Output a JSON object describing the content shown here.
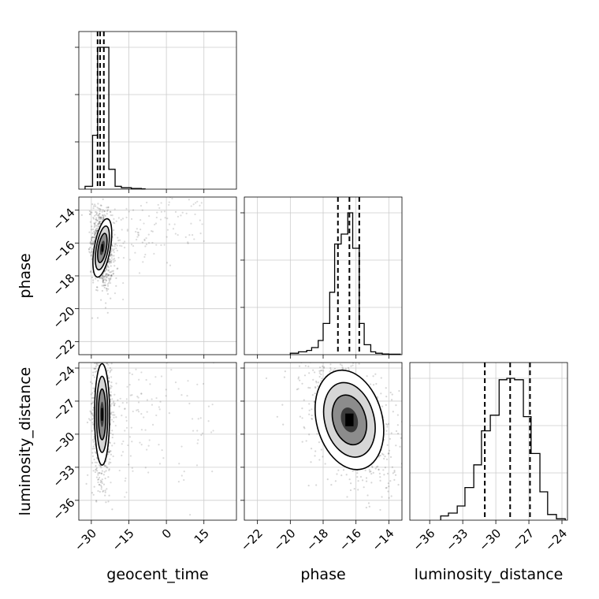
{
  "chart_data": {
    "type": "corner",
    "parameters": [
      "geocent_time",
      "phase",
      "luminosity_distance"
    ],
    "axis_labels": {
      "x": [
        "geocent_time",
        "phase",
        "luminosity_distance"
      ],
      "y": [
        "phase",
        "luminosity_distance"
      ]
    },
    "ranges": {
      "geocent_time": [
        -35,
        28
      ],
      "phase": [
        -22.8,
        -13.2
      ],
      "luminosity_distance": [
        -37.8,
        -23.5
      ]
    },
    "ticks": {
      "geocent_time": [
        "−30",
        "−15",
        "0",
        "15"
      ],
      "phase": [
        "−22",
        "−20",
        "−18",
        "−16",
        "−14"
      ],
      "luminosity_distance": [
        "−36",
        "−33",
        "−30",
        "−27",
        "−24"
      ]
    },
    "tick_values": {
      "geocent_time": [
        -30,
        -15,
        0,
        15
      ],
      "phase": [
        -22,
        -20,
        -18,
        -16,
        -14
      ],
      "luminosity_distance": [
        -36,
        -33,
        -30,
        -27,
        -24
      ]
    },
    "grid": true,
    "quantiles": {
      "geocent_time": [
        -27.5,
        -26.5,
        -25.0
      ],
      "phase": [
        -17.1,
        -16.4,
        -15.8
      ],
      "luminosity_distance": [
        -31.0,
        -28.7,
        -26.9
      ]
    },
    "histograms": {
      "geocent_time": {
        "bin_edges": [
          -32.5,
          -29.5,
          -27.5,
          -25.0,
          -23.0,
          -20.5,
          -18.0,
          -14.0,
          -10.0,
          -8.5
        ],
        "counts": [
          0.02,
          0.38,
          1.0,
          1.0,
          0.14,
          0.02,
          0.01,
          0.005,
          0.002
        ]
      },
      "phase": {
        "bin_edges": [
          -20.0,
          -19.5,
          -19.0,
          -18.7,
          -18.3,
          -18.0,
          -17.6,
          -17.3,
          -16.9,
          -16.5,
          -16.2,
          -15.8,
          -15.5,
          -15.1,
          -14.8,
          -14.4,
          -14.0,
          -13.3
        ],
        "counts": [
          0.01,
          0.02,
          0.03,
          0.05,
          0.1,
          0.22,
          0.44,
          0.78,
          0.85,
          1.0,
          0.75,
          0.22,
          0.07,
          0.02,
          0.01,
          0.005,
          0.003
        ]
      },
      "luminosity_distance": {
        "bin_edges": [
          -35.0,
          -34.3,
          -33.5,
          -32.8,
          -32.0,
          -31.3,
          -30.5,
          -29.7,
          -29.0,
          -28.3,
          -27.5,
          -26.8,
          -26.0,
          -25.3,
          -24.5,
          -23.7
        ],
        "counts": [
          0.03,
          0.05,
          0.1,
          0.23,
          0.39,
          0.63,
          0.74,
          0.99,
          1.0,
          0.99,
          0.73,
          0.47,
          0.2,
          0.04,
          0.01
        ]
      }
    },
    "kde_2d": [
      {
        "x": "geocent_time",
        "y": "phase",
        "center": [
          -25.6,
          -16.3
        ],
        "sigma": [
          1.6,
          0.9
        ],
        "tilt_deg": -10,
        "tail": {
          "direction": [
            1,
            0.25
          ],
          "extent": [
            -24,
            15
          ]
        }
      },
      {
        "x": "geocent_time",
        "y": "luminosity_distance",
        "center": [
          -25.7,
          -28.2
        ],
        "sigma": [
          1.5,
          2.3
        ],
        "tilt_deg": 0,
        "tail": {
          "direction": [
            1,
            -0.05
          ],
          "extent": [
            -24,
            20
          ]
        }
      },
      {
        "x": "phase",
        "y": "luminosity_distance",
        "center": [
          -16.4,
          -28.7
        ],
        "sigma": [
          1.0,
          2.3
        ],
        "tilt_deg": 15
      }
    ],
    "contour_levels": [
      "0.5",
      "1",
      "1.5",
      "2"
    ]
  }
}
